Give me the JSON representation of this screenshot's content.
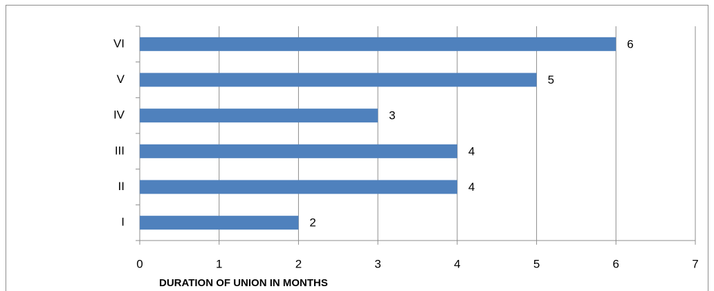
{
  "chart_data": {
    "type": "barh",
    "categories": [
      "I",
      "II",
      "III",
      "IV",
      "V",
      "VI"
    ],
    "values": [
      2,
      4,
      4,
      3,
      5,
      6
    ],
    "color": "#4f81bd",
    "xlim": [
      0,
      7
    ],
    "xticks": [
      0,
      1,
      2,
      3,
      4,
      5,
      6,
      7
    ],
    "x_label": "DURATION OF UNION IN MONTHS",
    "grid": true
  }
}
